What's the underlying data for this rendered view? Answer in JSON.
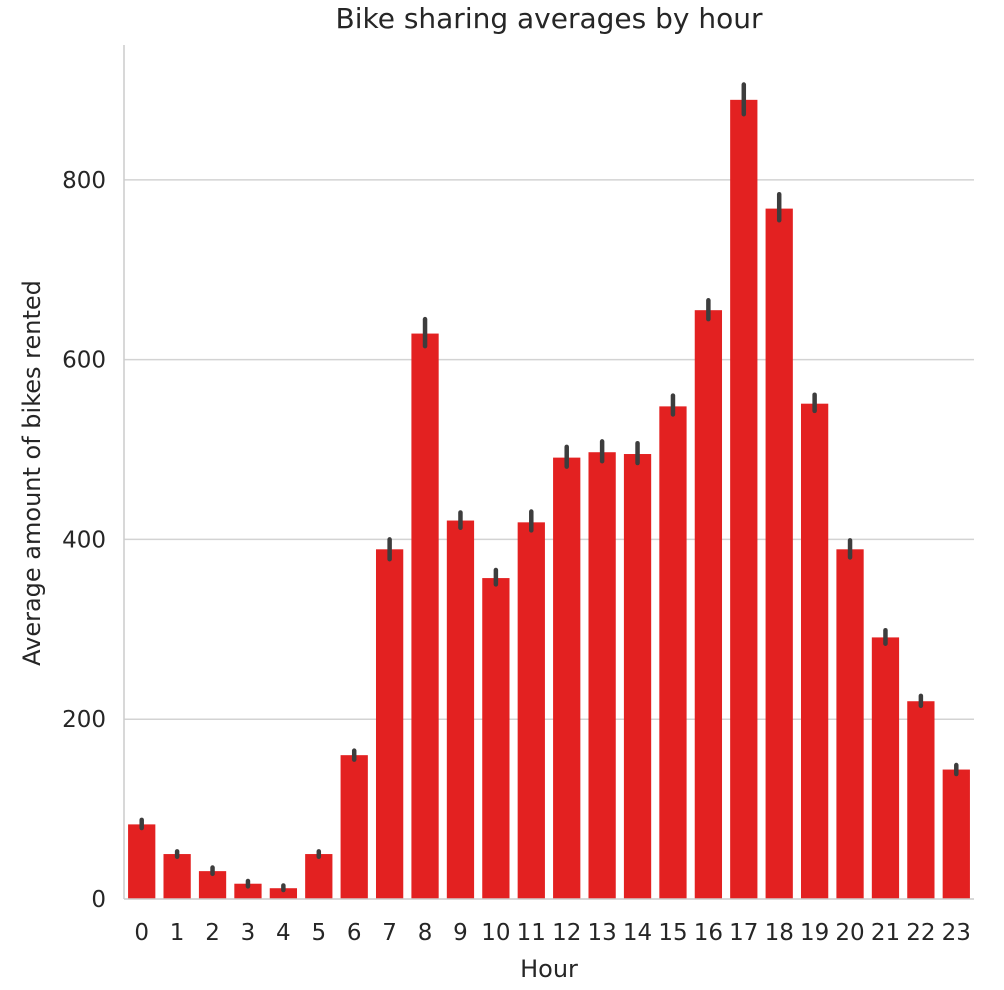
{
  "chart_data": {
    "type": "bar",
    "title": "Bike sharing averages by hour",
    "xlabel": "Hour",
    "ylabel": "Average amount of bikes rented",
    "categories": [
      "0",
      "1",
      "2",
      "3",
      "4",
      "5",
      "6",
      "7",
      "8",
      "9",
      "10",
      "11",
      "12",
      "13",
      "14",
      "15",
      "16",
      "17",
      "18",
      "19",
      "20",
      "21",
      "22",
      "23"
    ],
    "values": [
      83,
      50,
      31,
      17,
      12,
      50,
      160,
      389,
      629,
      421,
      357,
      419,
      491,
      497,
      495,
      548,
      655,
      889,
      768,
      551,
      389,
      291,
      220,
      144
    ],
    "error_low": [
      79,
      47,
      28,
      14,
      10,
      47,
      155,
      378,
      615,
      413,
      350,
      410,
      481,
      487,
      485,
      539,
      645,
      873,
      755,
      543,
      380,
      284,
      215,
      139
    ],
    "error_high": [
      88,
      53,
      35,
      20,
      15,
      53,
      165,
      400,
      645,
      430,
      366,
      431,
      503,
      509,
      507,
      560,
      666,
      906,
      784,
      561,
      399,
      299,
      226,
      149
    ],
    "ylim": [
      0,
      950
    ],
    "yticks": [
      0,
      200,
      400,
      600,
      800
    ],
    "grid": true,
    "colors": {
      "bar": "#E32121",
      "errorbar": "#3d3d3d",
      "grid": "#d3d3d3",
      "axis": "#cccccc"
    }
  }
}
